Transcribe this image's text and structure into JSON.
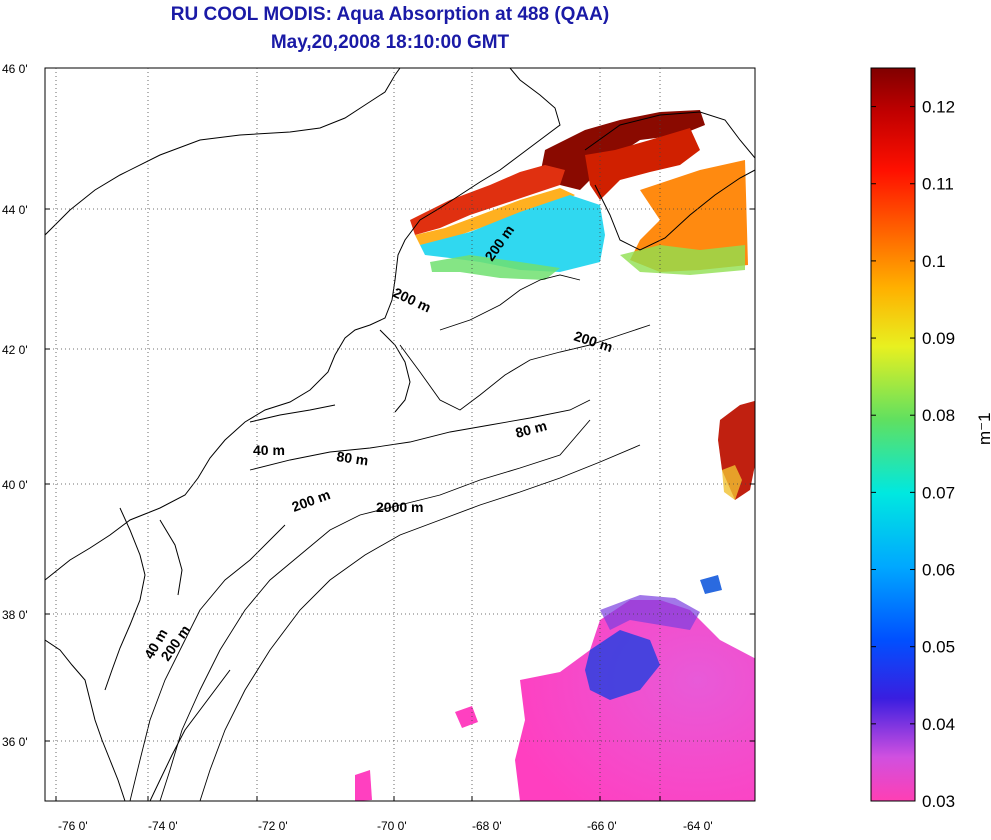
{
  "title": "RU COOL MODIS: Aqua Absorption at 488 (QAA)",
  "subtitle": "May,20,2008 18:10:00 GMT",
  "lon_ticks": [
    "-76 0'",
    "-74 0'",
    "-72 0'",
    "-70 0'",
    "-68 0'",
    "-66 0'",
    "-64 0'"
  ],
  "lat_ticks": [
    "46 0'",
    "44 0'",
    "42 0'",
    "40 0'",
    "38 0'",
    "36 0'"
  ],
  "colorbar": {
    "unit": "m⁻1",
    "min": 0.03,
    "max": 0.125,
    "ticks": [
      "0.12",
      "0.11",
      "0.1",
      "0.09",
      "0.08",
      "0.07",
      "0.06",
      "0.05",
      "0.04",
      "0.03"
    ]
  },
  "contour_labels": {
    "c200_gom": "200 m",
    "c200_gulf": "200 m",
    "c200_east": "200 m",
    "c80_east": "80 m",
    "c40_ny": "40 m",
    "c80_ny": "80 m",
    "c200_ny": "200 m",
    "c2000": "2000 m",
    "c40_south": "40 m",
    "c200_south": "200 m"
  },
  "colors": {
    "title": "#1a1aa6",
    "high": "#800000",
    "low": "#ff3fb4"
  }
}
